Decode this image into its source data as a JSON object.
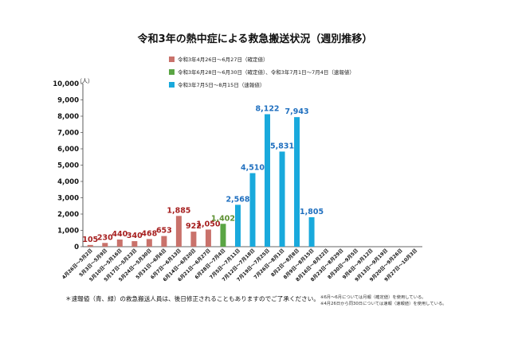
{
  "chart_data": {
    "type": "bar",
    "title": "令和3年の熱中症による救急搬送状況（週別推移）",
    "unit_label": "（人）",
    "ylim": [
      0,
      10000
    ],
    "yticks": [
      0,
      1000,
      2000,
      3000,
      4000,
      5000,
      6000,
      7000,
      8000,
      9000,
      10000
    ],
    "ytick_labels": [
      "0",
      "1,000",
      "2,000",
      "3,000",
      "4,000",
      "5,000",
      "6,000",
      "7,000",
      "8,000",
      "9,000",
      "10,000"
    ],
    "grid": false,
    "categories": [
      "4月26日～5月2日",
      "5月3日～5月9日",
      "5月10日～5月16日",
      "5月17日～5月23日",
      "5月24日～5月30日",
      "5月31日～6月6日",
      "6月7日～6月13日",
      "6月14日～6月20日",
      "6月21日～6月27日",
      "6月28日～7月4日",
      "7月5日～7月11日",
      "7月12日～7月18日",
      "7月19日～7月25日",
      "7月26日～8月1日",
      "8月2日～8月8日",
      "8月9日～8月15日",
      "8月16日～8月22日",
      "8月23日～8月29日",
      "8月30日～9月5日",
      "9月6日～9月12日",
      "9月13日～9月19日",
      "9月20日～9月26日",
      "9月27日～10月3日"
    ],
    "values": [
      105,
      230,
      440,
      340,
      468,
      653,
      1885,
      922,
      1050,
      1402,
      2568,
      4510,
      8122,
      5831,
      7943,
      1805,
      null,
      null,
      null,
      null,
      null,
      null,
      null
    ],
    "value_labels": [
      "105",
      "230",
      "440",
      "340",
      "468",
      "653",
      "1,885",
      "922",
      "1,050",
      "1,402",
      "2,568",
      "4,510",
      "8,122",
      "5,831",
      "7,943",
      "1,805",
      "",
      "",
      "",
      "",
      "",
      "",
      ""
    ],
    "bar_group": [
      0,
      0,
      0,
      0,
      0,
      0,
      0,
      0,
      0,
      1,
      2,
      2,
      2,
      2,
      2,
      2,
      null,
      null,
      null,
      null,
      null,
      null,
      null
    ],
    "legend": [
      {
        "label": "令和3年4月26日～6月27日（確定値）",
        "color": "#c9726b",
        "label_color": "#a61f1f"
      },
      {
        "label": "令和3年6月28日～6月30日（確定値）、令和3年7月1日～7月4日（速報値）",
        "color": "#5aa544",
        "label_color": "#5b8f2f"
      },
      {
        "label": "令和3年7月5日～8月15日（速報値）",
        "color": "#19a9dc",
        "label_color": "#1f6fbf"
      }
    ],
    "legend_position": "top"
  },
  "notes": {
    "main": "＊速報値（青、緑）の救急搬送人員は、後日修正されることもありますのでご了承ください。",
    "small_1": "※6月～6月については月報（確定値）を使用している。",
    "small_2": "※4月26日から同30日については速報（速報値）を使用している。"
  }
}
